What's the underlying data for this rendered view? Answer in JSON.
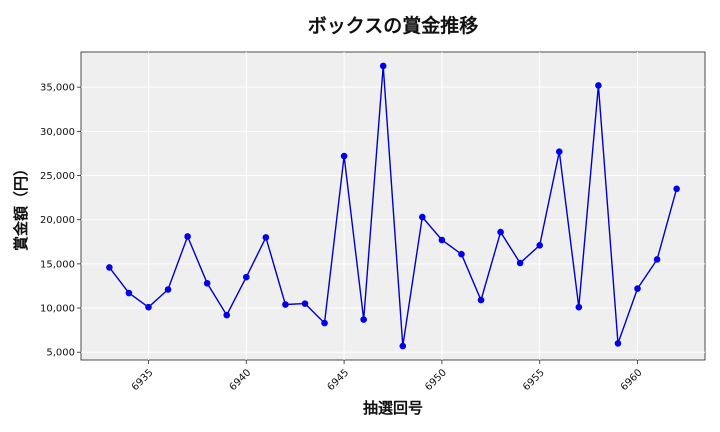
{
  "chart_data": {
    "type": "line",
    "title": "ボックスの賞金推移",
    "xlabel": "抽選回号",
    "ylabel": "賞金額（円）",
    "x": [
      6933,
      6934,
      6935,
      6936,
      6937,
      6938,
      6939,
      6940,
      6941,
      6942,
      6943,
      6944,
      6945,
      6946,
      6947,
      6948,
      6949,
      6950,
      6951,
      6952,
      6953,
      6954,
      6955,
      6956,
      6957,
      6958,
      6959,
      6960,
      6961,
      6962
    ],
    "values": [
      14600,
      11700,
      10100,
      12100,
      18100,
      12800,
      9200,
      13500,
      18000,
      10400,
      10500,
      8300,
      27200,
      8700,
      37400,
      5700,
      20300,
      17700,
      16100,
      10900,
      18600,
      15100,
      17100,
      27700,
      10100,
      35200,
      6000,
      12200,
      15500,
      23500
    ],
    "xticks": [
      6935,
      6940,
      6945,
      6950,
      6955,
      6960
    ],
    "xtick_labels": [
      "6935",
      "6940",
      "6945",
      "6950",
      "6955",
      "6960"
    ],
    "yticks": [
      5000,
      10000,
      15000,
      20000,
      25000,
      30000,
      35000
    ],
    "ytick_labels": [
      "5,000",
      "10,000",
      "15,000",
      "20,000",
      "25,000",
      "30,000",
      "35,000"
    ],
    "xlim": [
      6931.55,
      6963.45
    ],
    "ylim": [
      4120,
      38980
    ],
    "grid": true,
    "line_color": "#0000cc",
    "marker_color": "#0000ee",
    "plot_background": "#efefef"
  }
}
